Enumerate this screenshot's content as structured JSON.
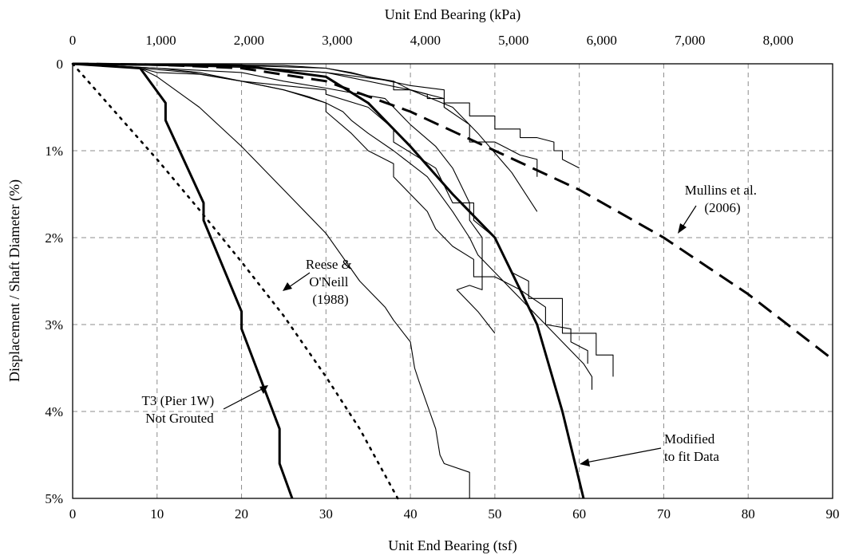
{
  "chart_data": {
    "type": "line",
    "xlabel": "Unit End Bearing (tsf)",
    "x2label": "Unit End Bearing (kPa)",
    "ylabel": "Displacement / Shaft Diameter (%)",
    "xlim": [
      0,
      90
    ],
    "ylim": [
      0,
      5
    ],
    "y_inverted": true,
    "grid": true,
    "x_ticks": [
      0,
      10,
      20,
      30,
      40,
      50,
      60,
      70,
      80,
      90
    ],
    "x_tick_labels": [
      "0",
      "10",
      "20",
      "30",
      "40",
      "50",
      "60",
      "70",
      "80",
      "90"
    ],
    "x2_ticks_kpa": [
      0,
      1000,
      2000,
      3000,
      4000,
      5000,
      6000,
      7000,
      8000
    ],
    "x2_tick_labels": [
      "0",
      "1,000",
      "2,000",
      "3,000",
      "4,000",
      "5,000",
      "6,000",
      "7,000",
      "8,000"
    ],
    "y_ticks": [
      0,
      1,
      2,
      3,
      4,
      5
    ],
    "y_tick_labels": [
      "0",
      "1%",
      "2%",
      "3%",
      "4%",
      "5%"
    ],
    "series": [
      {
        "name": "T3 (Pier 1W) Not Grouted",
        "style": "thick-solid",
        "color": "#000000",
        "x": [
          0,
          8,
          11,
          11,
          15.5,
          15.5,
          20,
          20,
          24.5,
          24.5,
          26
        ],
        "y": [
          0,
          0.05,
          0.45,
          0.65,
          1.6,
          1.8,
          2.85,
          3.05,
          4.2,
          4.6,
          5.0
        ]
      },
      {
        "name": "Reese & O'Neill (1988)",
        "style": "dotted",
        "color": "#000000",
        "x": [
          0,
          5,
          10,
          15,
          20,
          25,
          30,
          34,
          38.5
        ],
        "y": [
          0,
          0.55,
          1.1,
          1.68,
          2.28,
          2.9,
          3.6,
          4.2,
          5.0
        ]
      },
      {
        "name": "Mullins et al. (2006)",
        "style": "dashed",
        "color": "#000000",
        "x": [
          0,
          10,
          20,
          30,
          40,
          50,
          60,
          70,
          80,
          90
        ],
        "y": [
          0,
          0.01,
          0.05,
          0.2,
          0.55,
          1.0,
          1.45,
          2.0,
          2.65,
          3.4
        ]
      },
      {
        "name": "Modified to fit Data",
        "style": "thick-solid",
        "color": "#000000",
        "x": [
          0,
          20,
          30,
          35,
          40,
          45,
          50,
          55,
          58,
          60.5
        ],
        "y": [
          0,
          0.02,
          0.15,
          0.45,
          0.95,
          1.5,
          2.0,
          3.0,
          4.0,
          5.0
        ]
      },
      {
        "style": "thin",
        "color": "#000000",
        "x": [
          0,
          8,
          10,
          15,
          20,
          25,
          30,
          30,
          35,
          38,
          38,
          43,
          44,
          45,
          47.5,
          47.5,
          50,
          52,
          54,
          54,
          58,
          58,
          62,
          62,
          64,
          64
        ],
        "y": [
          0,
          0.05,
          0.1,
          0.12,
          0.2,
          0.25,
          0.3,
          0.35,
          0.5,
          0.75,
          0.9,
          1.2,
          1.4,
          1.6,
          1.6,
          1.8,
          2.0,
          2.4,
          2.5,
          2.7,
          2.7,
          3.1,
          3.1,
          3.35,
          3.35,
          3.6
        ]
      },
      {
        "style": "thin",
        "color": "#000000",
        "x": [
          0,
          10,
          15,
          20,
          25,
          28,
          30,
          32,
          33,
          35,
          38,
          42,
          45,
          47,
          48,
          50,
          53,
          55,
          57,
          59,
          60.5,
          61.5,
          61.5
        ],
        "y": [
          0,
          0.05,
          0.1,
          0.2,
          0.3,
          0.38,
          0.45,
          0.55,
          0.65,
          0.8,
          1.0,
          1.3,
          1.7,
          2.0,
          2.2,
          2.4,
          2.7,
          2.9,
          3.1,
          3.3,
          3.45,
          3.6,
          3.75
        ]
      },
      {
        "style": "thin",
        "color": "#000000",
        "x": [
          0,
          8,
          14,
          20,
          25,
          30,
          30,
          33,
          35,
          38,
          38,
          42,
          43,
          45,
          47.5,
          47.5,
          50,
          53,
          56,
          56,
          59,
          59,
          61,
          61
        ],
        "y": [
          0,
          0.05,
          0.1,
          0.2,
          0.3,
          0.45,
          0.55,
          0.8,
          1.0,
          1.15,
          1.3,
          1.7,
          1.9,
          2.1,
          2.25,
          2.45,
          2.45,
          2.6,
          2.8,
          3.0,
          3.05,
          3.2,
          3.3,
          3.45
        ]
      },
      {
        "style": "thin",
        "color": "#000000",
        "x": [
          0,
          10,
          20,
          25,
          30,
          34,
          37,
          38,
          40,
          43,
          45,
          47,
          47,
          48.5,
          48.5,
          47,
          45.5,
          48,
          50
        ],
        "y": [
          0,
          0.05,
          0.1,
          0.2,
          0.28,
          0.35,
          0.4,
          0.5,
          0.7,
          0.95,
          1.2,
          1.6,
          1.8,
          2.0,
          2.6,
          2.55,
          2.6,
          2.85,
          3.1
        ]
      },
      {
        "style": "thin",
        "color": "#000000",
        "x": [
          0,
          8,
          10,
          15,
          20,
          25,
          30,
          34,
          37,
          38,
          40,
          40.5,
          41,
          43,
          43.5,
          44,
          47,
          47
        ],
        "y": [
          0,
          0.05,
          0.15,
          0.5,
          0.95,
          1.45,
          1.95,
          2.5,
          2.8,
          2.95,
          3.2,
          3.5,
          3.65,
          4.2,
          4.5,
          4.6,
          4.7,
          5.0
        ]
      },
      {
        "style": "thin",
        "color": "#000000",
        "x": [
          0,
          10,
          20,
          30,
          40,
          45,
          48,
          52,
          55
        ],
        "y": [
          0,
          0.02,
          0.04,
          0.1,
          0.3,
          0.5,
          0.8,
          1.25,
          1.7
        ]
      },
      {
        "style": "thin",
        "color": "#000000",
        "x": [
          0,
          10,
          20,
          30,
          38,
          40,
          44,
          44,
          47,
          47,
          50,
          52,
          53,
          55,
          55
        ],
        "y": [
          0,
          0.01,
          0.03,
          0.1,
          0.2,
          0.3,
          0.4,
          0.5,
          0.7,
          0.9,
          0.9,
          1.0,
          1.05,
          1.1,
          1.3
        ]
      },
      {
        "style": "thin",
        "color": "#000000",
        "x": [
          0,
          10,
          20,
          30,
          35,
          40,
          44,
          44,
          47,
          47,
          50,
          50,
          53,
          53,
          55,
          57,
          57,
          58,
          58,
          60
        ],
        "y": [
          0,
          0.01,
          0.02,
          0.05,
          0.15,
          0.25,
          0.3,
          0.45,
          0.45,
          0.6,
          0.6,
          0.75,
          0.75,
          0.85,
          0.85,
          0.9,
          1.0,
          1.0,
          1.1,
          1.2
        ]
      },
      {
        "style": "thin",
        "color": "#000000",
        "x": [
          0,
          15,
          25,
          30,
          33,
          35,
          38,
          38,
          40,
          42,
          42,
          44,
          44
        ],
        "y": [
          0,
          0.01,
          0.02,
          0.05,
          0.1,
          0.15,
          0.2,
          0.3,
          0.3,
          0.35,
          0.4,
          0.4,
          0.5
        ]
      }
    ],
    "annotations": [
      {
        "lines": [
          "Mullins et al.",
          "(2006)"
        ]
      },
      {
        "lines": [
          "Reese &",
          "O'Neill",
          "(1988)"
        ]
      },
      {
        "lines": [
          "T3 (Pier 1W)",
          "Not Grouted"
        ]
      },
      {
        "lines": [
          "Modified",
          "to fit Data"
        ]
      }
    ]
  }
}
